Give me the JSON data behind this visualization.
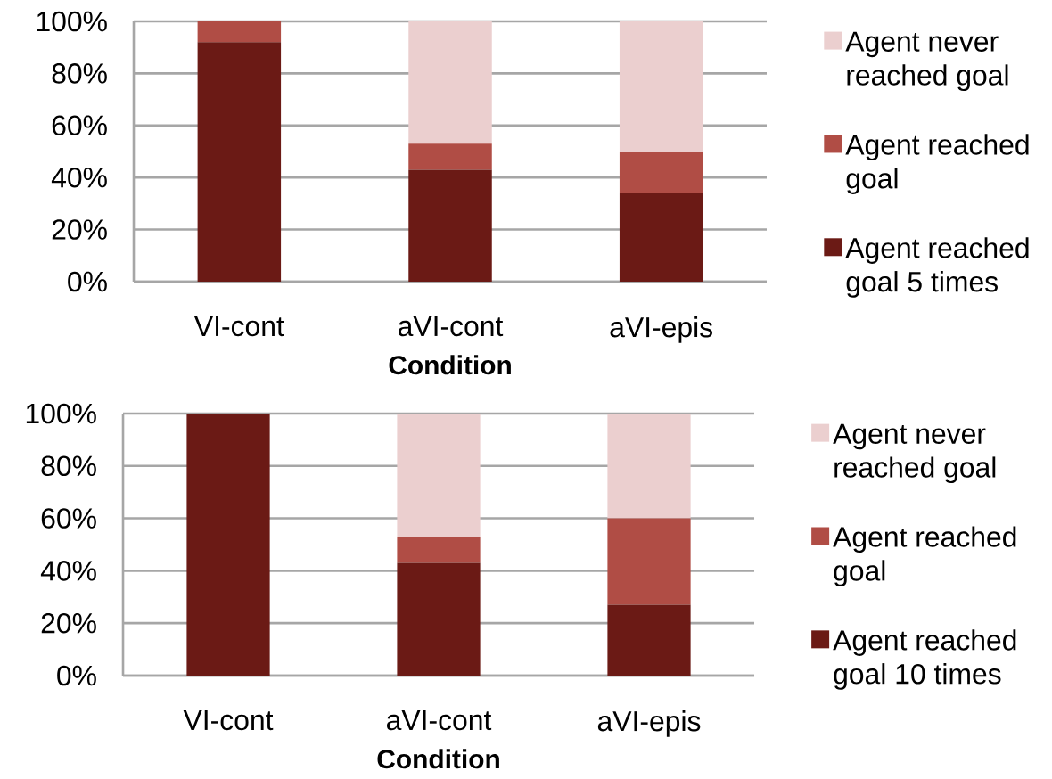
{
  "chart_data": [
    {
      "type": "bar",
      "stacked": true,
      "categories": [
        "VI-cont",
        "aVI-cont",
        "aVI-epis"
      ],
      "xlabel": "Condition",
      "series": [
        {
          "name": "Agent reached goal 5 times",
          "color": "#6b1a15",
          "values": [
            92,
            43,
            34
          ]
        },
        {
          "name": "Agent reached goal",
          "color": "#b04d45",
          "values": [
            8,
            10,
            16
          ]
        },
        {
          "name": "Agent never reached goal",
          "color": "#ebcfcf",
          "values": [
            null,
            47,
            50
          ]
        }
      ],
      "ylim": [
        0,
        100
      ],
      "yticks": [
        {
          "value": 0,
          "label": "0%"
        },
        {
          "value": 20,
          "label": "20%"
        },
        {
          "value": 40,
          "label": "40%"
        },
        {
          "value": 60,
          "label": "60%"
        },
        {
          "value": 80,
          "label": "80%"
        },
        {
          "value": 100,
          "label": "100%"
        }
      ],
      "grid": "y",
      "legend": "right"
    },
    {
      "type": "bar",
      "stacked": true,
      "categories": [
        "VI-cont",
        "aVI-cont",
        "aVI-epis"
      ],
      "xlabel": "Condition",
      "series": [
        {
          "name": "Agent reached goal 10 times",
          "color": "#6b1a15",
          "values": [
            100,
            43,
            27
          ]
        },
        {
          "name": "Agent reached goal",
          "color": "#b04d45",
          "values": [
            null,
            10,
            33
          ]
        },
        {
          "name": "Agent never reached goal",
          "color": "#ebcfcf",
          "values": [
            null,
            47,
            40
          ]
        }
      ],
      "ylim": [
        0,
        100
      ],
      "yticks": [
        {
          "value": 0,
          "label": "0%"
        },
        {
          "value": 20,
          "label": "20%"
        },
        {
          "value": 40,
          "label": "40%"
        },
        {
          "value": 60,
          "label": "60%"
        },
        {
          "value": 80,
          "label": "80%"
        },
        {
          "value": 100,
          "label": "100%"
        }
      ],
      "grid": "y",
      "legend": "right"
    }
  ]
}
